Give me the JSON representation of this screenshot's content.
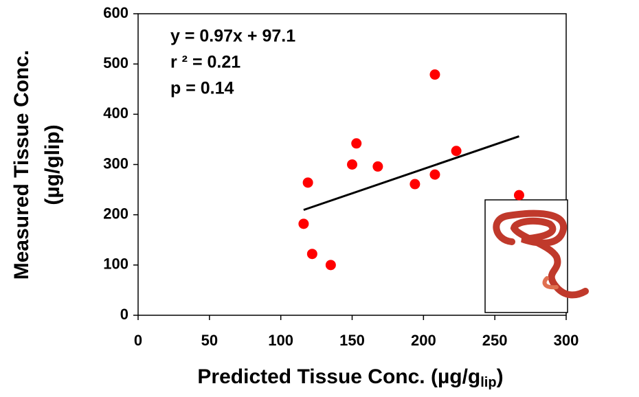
{
  "chart_data": {
    "type": "scatter",
    "xlabel": "Predicted Tissue Conc. (µg/g",
    "xlabel_sub": "lip",
    "xlabel_end": ")",
    "ylabel": [
      "Measured Tissue Conc.",
      "(µg/glip)"
    ],
    "annotations": [
      "y = 0.97x + 97.1",
      "r ² = 0.21",
      "p = 0.14"
    ],
    "x": [
      116,
      119,
      122,
      135,
      150,
      153,
      168,
      194,
      208,
      208,
      223,
      267
    ],
    "series": [
      {
        "color": "#ff0000",
        "values": [
          182,
          264,
          122,
          100,
          300,
          342,
          296,
          261,
          479,
          280,
          327,
          239
        ]
      }
    ],
    "trendline": {
      "x": [
        116,
        267
      ],
      "y": [
        209.6,
        356.1
      ],
      "color": "#000000"
    },
    "xlim": [
      0,
      300
    ],
    "xticks": [
      0,
      50,
      100,
      150,
      200,
      250,
      300
    ],
    "ylim": [
      0,
      600
    ],
    "yticks": [
      0,
      100,
      200,
      300,
      400,
      500,
      600
    ],
    "grid": false
  }
}
